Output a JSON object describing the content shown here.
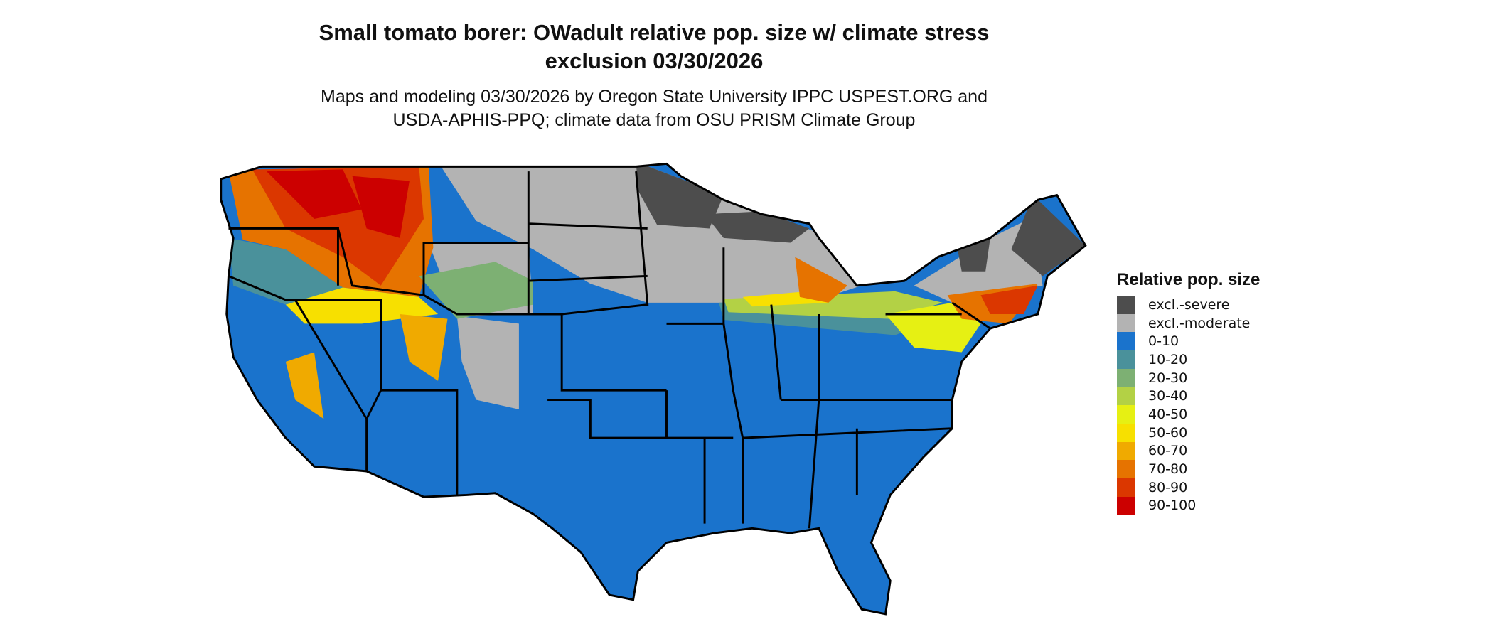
{
  "title": {
    "line1": "Small tomato borer: OWadult relative pop. size w/ climate stress",
    "line2": "exclusion 03/30/2026"
  },
  "subtitle": {
    "line1": "Maps and modeling 03/30/2026 by Oregon State University IPPC USPEST.ORG and",
    "line2": "USDA-APHIS-PPQ; climate data from OSU PRISM Climate Group"
  },
  "legend": {
    "title": "Relative pop. size",
    "items": [
      {
        "label": "excl.-severe",
        "color": "#4d4d4d"
      },
      {
        "label": "excl.-moderate",
        "color": "#b3b3b3"
      },
      {
        "label": "0-10",
        "color": "#1a73cc"
      },
      {
        "label": "10-20",
        "color": "#4a919b"
      },
      {
        "label": "20-30",
        "color": "#7db073"
      },
      {
        "label": "30-40",
        "color": "#b3d145"
      },
      {
        "label": "40-50",
        "color": "#e6f013"
      },
      {
        "label": "50-60",
        "color": "#f7e000"
      },
      {
        "label": "60-70",
        "color": "#f0aa00"
      },
      {
        "label": "70-80",
        "color": "#e67300"
      },
      {
        "label": "80-90",
        "color": "#db3700"
      },
      {
        "label": "90-100",
        "color": "#cc0000"
      }
    ]
  }
}
